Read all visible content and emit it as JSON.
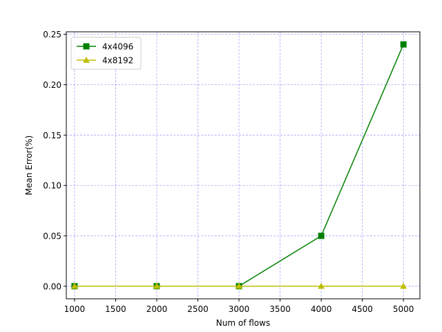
{
  "chart_data": {
    "type": "line",
    "title": "",
    "xlabel": "Num of flows",
    "ylabel": "Mean Error(%)",
    "x": [
      1000,
      2000,
      3000,
      4000,
      5000
    ],
    "xlim": [
      900,
      5200
    ],
    "ylim": [
      -0.0125,
      0.2525
    ],
    "xticks": [
      1000,
      1500,
      2000,
      2500,
      3000,
      3500,
      4000,
      4500,
      5000
    ],
    "yticks": [
      0.0,
      0.05,
      0.1,
      0.15,
      0.2,
      0.25
    ],
    "xtick_labels": [
      "1000",
      "1500",
      "2000",
      "2500",
      "3000",
      "3500",
      "4000",
      "4500",
      "5000"
    ],
    "ytick_labels": [
      "0.00",
      "0.05",
      "0.10",
      "0.15",
      "0.20",
      "0.25"
    ],
    "grid": true,
    "grid_color": "#0000ff",
    "legend_position": "top-left",
    "series": [
      {
        "name": "4x4096",
        "values": [
          0.0,
          0.0,
          0.0,
          0.05,
          0.24
        ],
        "color": "#008000",
        "marker": "square"
      },
      {
        "name": "4x8192",
        "values": [
          0.0,
          0.0,
          0.0,
          0.0,
          0.0
        ],
        "color": "#bfbf00",
        "marker": "triangle"
      }
    ]
  }
}
